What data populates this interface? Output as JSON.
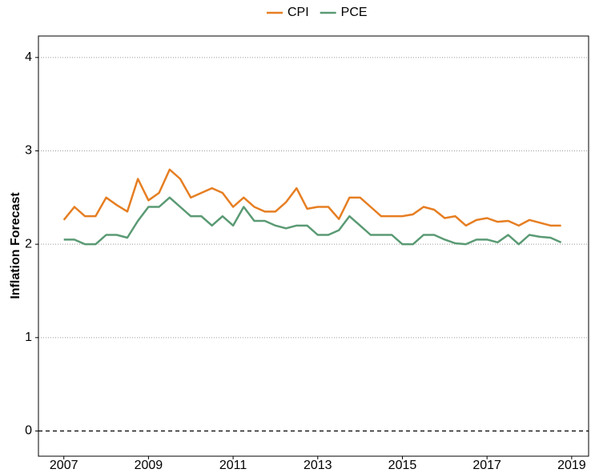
{
  "chart_data": {
    "type": "line",
    "y_label": "Inflation Forecast",
    "x": [
      2007,
      2007.25,
      2007.5,
      2007.75,
      2008,
      2008.25,
      2008.5,
      2008.75,
      2009,
      2009.25,
      2009.5,
      2009.75,
      2010,
      2010.25,
      2010.5,
      2010.75,
      2011,
      2011.25,
      2011.5,
      2011.75,
      2012,
      2012.25,
      2012.5,
      2012.75,
      2013,
      2013.25,
      2013.5,
      2013.75,
      2014,
      2014.25,
      2014.5,
      2014.75,
      2015,
      2015.25,
      2015.5,
      2015.75,
      2016,
      2016.25,
      2016.5,
      2016.75,
      2017,
      2017.25,
      2017.5,
      2017.75,
      2018,
      2018.25,
      2018.5,
      2018.75
    ],
    "series": [
      {
        "name": "CPI",
        "color": "#e67e22",
        "values": [
          2.26,
          2.4,
          2.3,
          2.3,
          2.5,
          2.42,
          2.35,
          2.7,
          2.47,
          2.55,
          2.8,
          2.7,
          2.5,
          2.55,
          2.6,
          2.55,
          2.4,
          2.5,
          2.4,
          2.35,
          2.35,
          2.45,
          2.6,
          2.38,
          2.4,
          2.4,
          2.27,
          2.5,
          2.5,
          2.4,
          2.3,
          2.3,
          2.3,
          2.32,
          2.4,
          2.37,
          2.28,
          2.3,
          2.2,
          2.26,
          2.28,
          2.24,
          2.25,
          2.2,
          2.26,
          2.23,
          2.2,
          2.2
        ]
      },
      {
        "name": "PCE",
        "color": "#5a9a74",
        "values": [
          2.05,
          2.05,
          2.0,
          2.0,
          2.1,
          2.1,
          2.07,
          2.25,
          2.4,
          2.4,
          2.5,
          2.4,
          2.3,
          2.3,
          2.2,
          2.3,
          2.2,
          2.4,
          2.25,
          2.25,
          2.2,
          2.17,
          2.2,
          2.2,
          2.1,
          2.1,
          2.15,
          2.3,
          2.2,
          2.1,
          2.1,
          2.1,
          2.0,
          2.0,
          2.1,
          2.1,
          2.05,
          2.01,
          2.0,
          2.05,
          2.05,
          2.02,
          2.1,
          2.0,
          2.1,
          2.08,
          2.07,
          2.02
        ]
      }
    ],
    "xlim": [
      2006.4,
      2019.4
    ],
    "xticks": [
      2007,
      2009,
      2011,
      2013,
      2015,
      2017,
      2019
    ],
    "ylim": [
      -0.27,
      4.23
    ],
    "yticks": [
      0,
      1,
      2,
      3,
      4
    ],
    "grid": true,
    "zero_line": true,
    "legend": "top"
  }
}
